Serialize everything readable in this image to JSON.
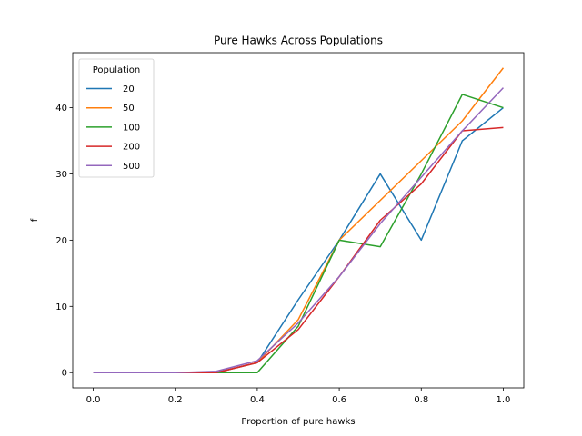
{
  "chart_data": {
    "type": "line",
    "title": "Pure Hawks Across Populations",
    "xlabel": "Proportion of pure hawks",
    "ylabel": "f",
    "xlim": [
      -0.05,
      1.05
    ],
    "ylim": [
      -2.3,
      48.3
    ],
    "xticks": [
      "0.0",
      "0.2",
      "0.4",
      "0.6",
      "0.8",
      "1.0"
    ],
    "yticks": [
      "0",
      "10",
      "20",
      "30",
      "40"
    ],
    "grid": false,
    "legend": {
      "title": "Population",
      "placement": "upper left"
    },
    "x": [
      0.0,
      0.1,
      0.2,
      0.3,
      0.4,
      0.5,
      0.6,
      0.7,
      0.8,
      0.9,
      1.0
    ],
    "series": [
      {
        "name": "20",
        "color": "#1f77b4",
        "values": [
          0,
          0,
          0,
          0,
          1.5,
          11,
          20,
          30,
          20,
          35,
          40
        ]
      },
      {
        "name": "50",
        "color": "#ff7f0e",
        "values": [
          0,
          0,
          0,
          0,
          1.5,
          8,
          20,
          26,
          32,
          38,
          46
        ]
      },
      {
        "name": "100",
        "color": "#2ca02c",
        "values": [
          0,
          0,
          0,
          0,
          0,
          7,
          20,
          19,
          30,
          42,
          40
        ]
      },
      {
        "name": "200",
        "color": "#d62728",
        "values": [
          0,
          0,
          0,
          0,
          1.5,
          6.5,
          14.5,
          23,
          28.5,
          36.5,
          37
        ]
      },
      {
        "name": "500",
        "color": "#9467bd",
        "values": [
          0,
          0,
          0,
          0.2,
          1.8,
          7.5,
          14.5,
          22.5,
          29.5,
          36.5,
          43
        ]
      }
    ]
  }
}
